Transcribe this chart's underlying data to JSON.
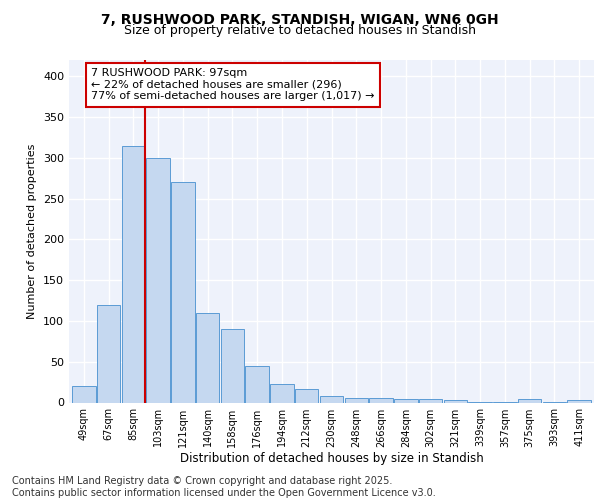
{
  "title1": "7, RUSHWOOD PARK, STANDISH, WIGAN, WN6 0GH",
  "title2": "Size of property relative to detached houses in Standish",
  "xlabel": "Distribution of detached houses by size in Standish",
  "ylabel": "Number of detached properties",
  "bar_labels": [
    "49sqm",
    "67sqm",
    "85sqm",
    "103sqm",
    "121sqm",
    "140sqm",
    "158sqm",
    "176sqm",
    "194sqm",
    "212sqm",
    "230sqm",
    "248sqm",
    "266sqm",
    "284sqm",
    "302sqm",
    "321sqm",
    "339sqm",
    "357sqm",
    "375sqm",
    "393sqm",
    "411sqm"
  ],
  "bar_values": [
    20,
    120,
    315,
    300,
    270,
    110,
    90,
    45,
    23,
    16,
    8,
    5,
    5,
    4,
    4,
    3,
    1,
    1,
    4,
    1,
    3
  ],
  "bar_color": "#c5d8f0",
  "bar_edge_color": "#5b9bd5",
  "annotation_line1": "7 RUSHWOOD PARK: 97sqm",
  "annotation_line2": "← 22% of detached houses are smaller (296)",
  "annotation_line3": "77% of semi-detached houses are larger (1,017) →",
  "annotation_box_color": "#ffffff",
  "annotation_box_edge": "#cc0000",
  "vline_color": "#cc0000",
  "vline_xindex": 2,
  "footer_text": "Contains HM Land Registry data © Crown copyright and database right 2025.\nContains public sector information licensed under the Open Government Licence v3.0.",
  "background_color": "#eef2fb",
  "ylim": [
    0,
    420
  ],
  "yticks": [
    0,
    50,
    100,
    150,
    200,
    250,
    300,
    350,
    400
  ],
  "title1_fontsize": 10,
  "title2_fontsize": 9,
  "footer_fontsize": 7,
  "annotation_fontsize": 8
}
